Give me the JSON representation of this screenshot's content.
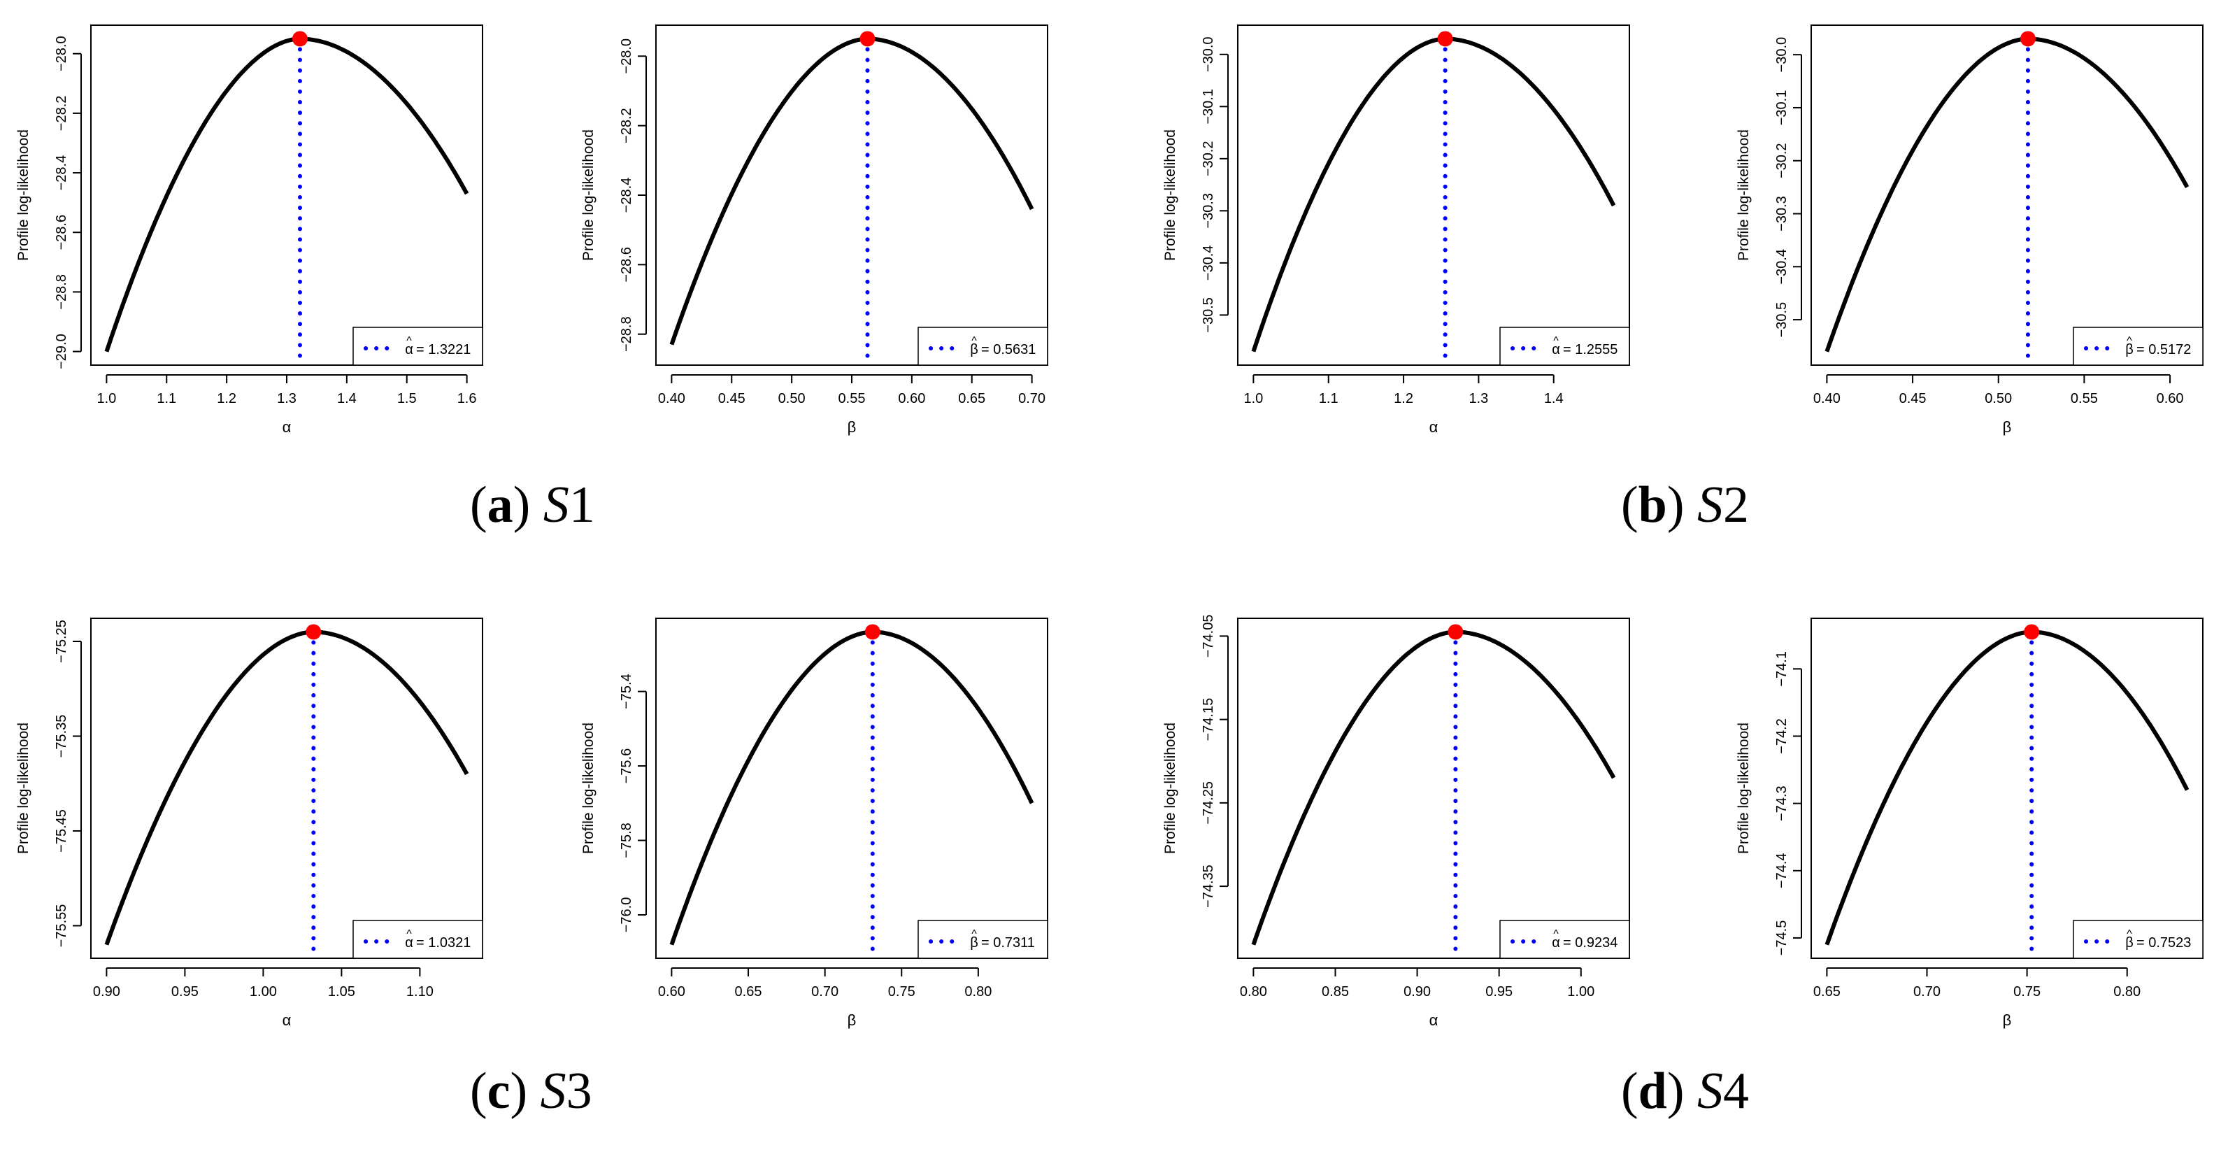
{
  "chart_data": [
    {
      "type": "line",
      "ylabel": "Profile log-likelihood",
      "xlabel": "α",
      "x_range": [
        1.0,
        1.6
      ],
      "y_range": [
        -29.0,
        -27.95
      ],
      "x_ticks": [
        "1.0",
        "1.1",
        "1.2",
        "1.3",
        "1.4",
        "1.5",
        "1.6"
      ],
      "y_ticks": [
        "-29.0",
        "-28.8",
        "-28.6",
        "-28.4",
        "-28.2",
        "-28.0"
      ],
      "curve": {
        "x_start": 1.0,
        "y_start": -29.0,
        "x_end": 1.6,
        "y_end": -28.47
      },
      "mle": {
        "x": 1.3221,
        "y": -27.95
      },
      "legend": {
        "hat": "^",
        "symbol": "α",
        "text": "= 1.3221"
      }
    },
    {
      "type": "line",
      "ylabel": "Profile log-likelihood",
      "xlabel": "β",
      "x_range": [
        0.4,
        0.7
      ],
      "y_range": [
        -28.85,
        -27.95
      ],
      "x_ticks": [
        "0.40",
        "0.45",
        "0.50",
        "0.55",
        "0.60",
        "0.65",
        "0.70"
      ],
      "y_ticks": [
        "-28.8",
        "-28.6",
        "-28.4",
        "-28.2",
        "-28.0"
      ],
      "curve": {
        "x_start": 0.4,
        "y_start": -28.83,
        "x_end": 0.7,
        "y_end": -28.44
      },
      "mle": {
        "x": 0.5631,
        "y": -27.95
      },
      "legend": {
        "hat": "^",
        "symbol": "β",
        "text": "= 0.5631"
      }
    },
    {
      "type": "line",
      "ylabel": "Profile log-likelihood",
      "xlabel": "α",
      "x_range": [
        1.0,
        1.48
      ],
      "y_range": [
        -30.57,
        -29.97
      ],
      "x_ticks": [
        "1.0",
        "1.1",
        "1.2",
        "1.3",
        "1.4"
      ],
      "y_ticks": [
        "-30.5",
        "-30.4",
        "-30.3",
        "-30.2",
        "-30.1",
        "-30.0"
      ],
      "curve": {
        "x_start": 1.0,
        "y_start": -30.57,
        "x_end": 1.48,
        "y_end": -30.29
      },
      "mle": {
        "x": 1.2555,
        "y": -29.97
      },
      "legend": {
        "hat": "^",
        "symbol": "α",
        "text": "= 1.2555"
      }
    },
    {
      "type": "line",
      "ylabel": "Profile log-likelihood",
      "xlabel": "β",
      "x_range": [
        0.4,
        0.61
      ],
      "y_range": [
        -30.56,
        -29.97
      ],
      "x_ticks": [
        "0.40",
        "0.45",
        "0.50",
        "0.55",
        "0.60"
      ],
      "y_ticks": [
        "-30.5",
        "-30.4",
        "-30.3",
        "-30.2",
        "-30.1",
        "-30.0"
      ],
      "curve": {
        "x_start": 0.4,
        "y_start": -30.56,
        "x_end": 0.61,
        "y_end": -30.25
      },
      "mle": {
        "x": 0.5172,
        "y": -29.97
      },
      "legend": {
        "hat": "^",
        "symbol": "β",
        "text": "= 0.5172"
      }
    },
    {
      "type": "line",
      "ylabel": "Profile log-likelihood",
      "xlabel": "α",
      "x_range": [
        0.9,
        1.13
      ],
      "y_range": [
        -75.57,
        -75.24
      ],
      "x_ticks": [
        "0.90",
        "0.95",
        "1.00",
        "1.05",
        "1.10"
      ],
      "y_ticks": [
        "-75.55",
        "-75.45",
        "-75.35",
        "-75.25"
      ],
      "curve": {
        "x_start": 0.9,
        "y_start": -75.57,
        "x_end": 1.13,
        "y_end": -75.39
      },
      "mle": {
        "x": 1.0321,
        "y": -75.24
      },
      "legend": {
        "hat": "^",
        "symbol": "α",
        "text": "= 1.0321"
      }
    },
    {
      "type": "line",
      "ylabel": "Profile log-likelihood",
      "xlabel": "β",
      "x_range": [
        0.6,
        0.835
      ],
      "y_range": [
        -76.08,
        -75.24
      ],
      "x_ticks": [
        "0.60",
        "0.65",
        "0.70",
        "0.75",
        "0.80"
      ],
      "y_ticks": [
        "-76.0",
        "-75.8",
        "-75.6",
        "-75.4"
      ],
      "curve": {
        "x_start": 0.6,
        "y_start": -76.08,
        "x_end": 0.835,
        "y_end": -75.7
      },
      "mle": {
        "x": 0.7311,
        "y": -75.24
      },
      "legend": {
        "hat": "^",
        "symbol": "β",
        "text": "= 0.7311"
      }
    },
    {
      "type": "line",
      "ylabel": "Profile log-likelihood",
      "xlabel": "α",
      "x_range": [
        0.8,
        1.02
      ],
      "y_range": [
        -74.42,
        -74.045
      ],
      "x_ticks": [
        "0.80",
        "0.85",
        "0.90",
        "0.95",
        "1.00"
      ],
      "y_ticks": [
        "-74.35",
        "-74.25",
        "-74.15",
        "-74.05"
      ],
      "curve": {
        "x_start": 0.8,
        "y_start": -74.42,
        "x_end": 1.02,
        "y_end": -74.22
      },
      "mle": {
        "x": 0.9234,
        "y": -74.045
      },
      "legend": {
        "hat": "^",
        "symbol": "α",
        "text": "= 0.9234"
      }
    },
    {
      "type": "line",
      "ylabel": "Profile log-likelihood",
      "xlabel": "β",
      "x_range": [
        0.65,
        0.83
      ],
      "y_range": [
        -74.51,
        -74.045
      ],
      "x_ticks": [
        "0.65",
        "0.70",
        "0.75",
        "0.80"
      ],
      "y_ticks": [
        "-74.5",
        "-74.4",
        "-74.3",
        "-74.2",
        "-74.1"
      ],
      "curve": {
        "x_start": 0.65,
        "y_start": -74.51,
        "x_end": 0.83,
        "y_end": -74.28
      },
      "mle": {
        "x": 0.7523,
        "y": -74.045
      },
      "legend": {
        "hat": "^",
        "symbol": "β",
        "text": "= 0.7523"
      }
    }
  ],
  "captions": [
    {
      "open": "(",
      "letter": "a",
      "close": ")",
      "symbol": "S",
      "number": "1"
    },
    {
      "open": "(",
      "letter": "b",
      "close": ")",
      "symbol": "S",
      "number": "2"
    },
    {
      "open": "(",
      "letter": "c",
      "close": ")",
      "symbol": "S",
      "number": "3"
    },
    {
      "open": "(",
      "letter": "d",
      "close": ")",
      "symbol": "S",
      "number": "4"
    }
  ],
  "colors": {
    "curve": "#000000",
    "mle_marker": "#ff0000",
    "mle_line": "#0000ff",
    "axis": "#000000"
  }
}
